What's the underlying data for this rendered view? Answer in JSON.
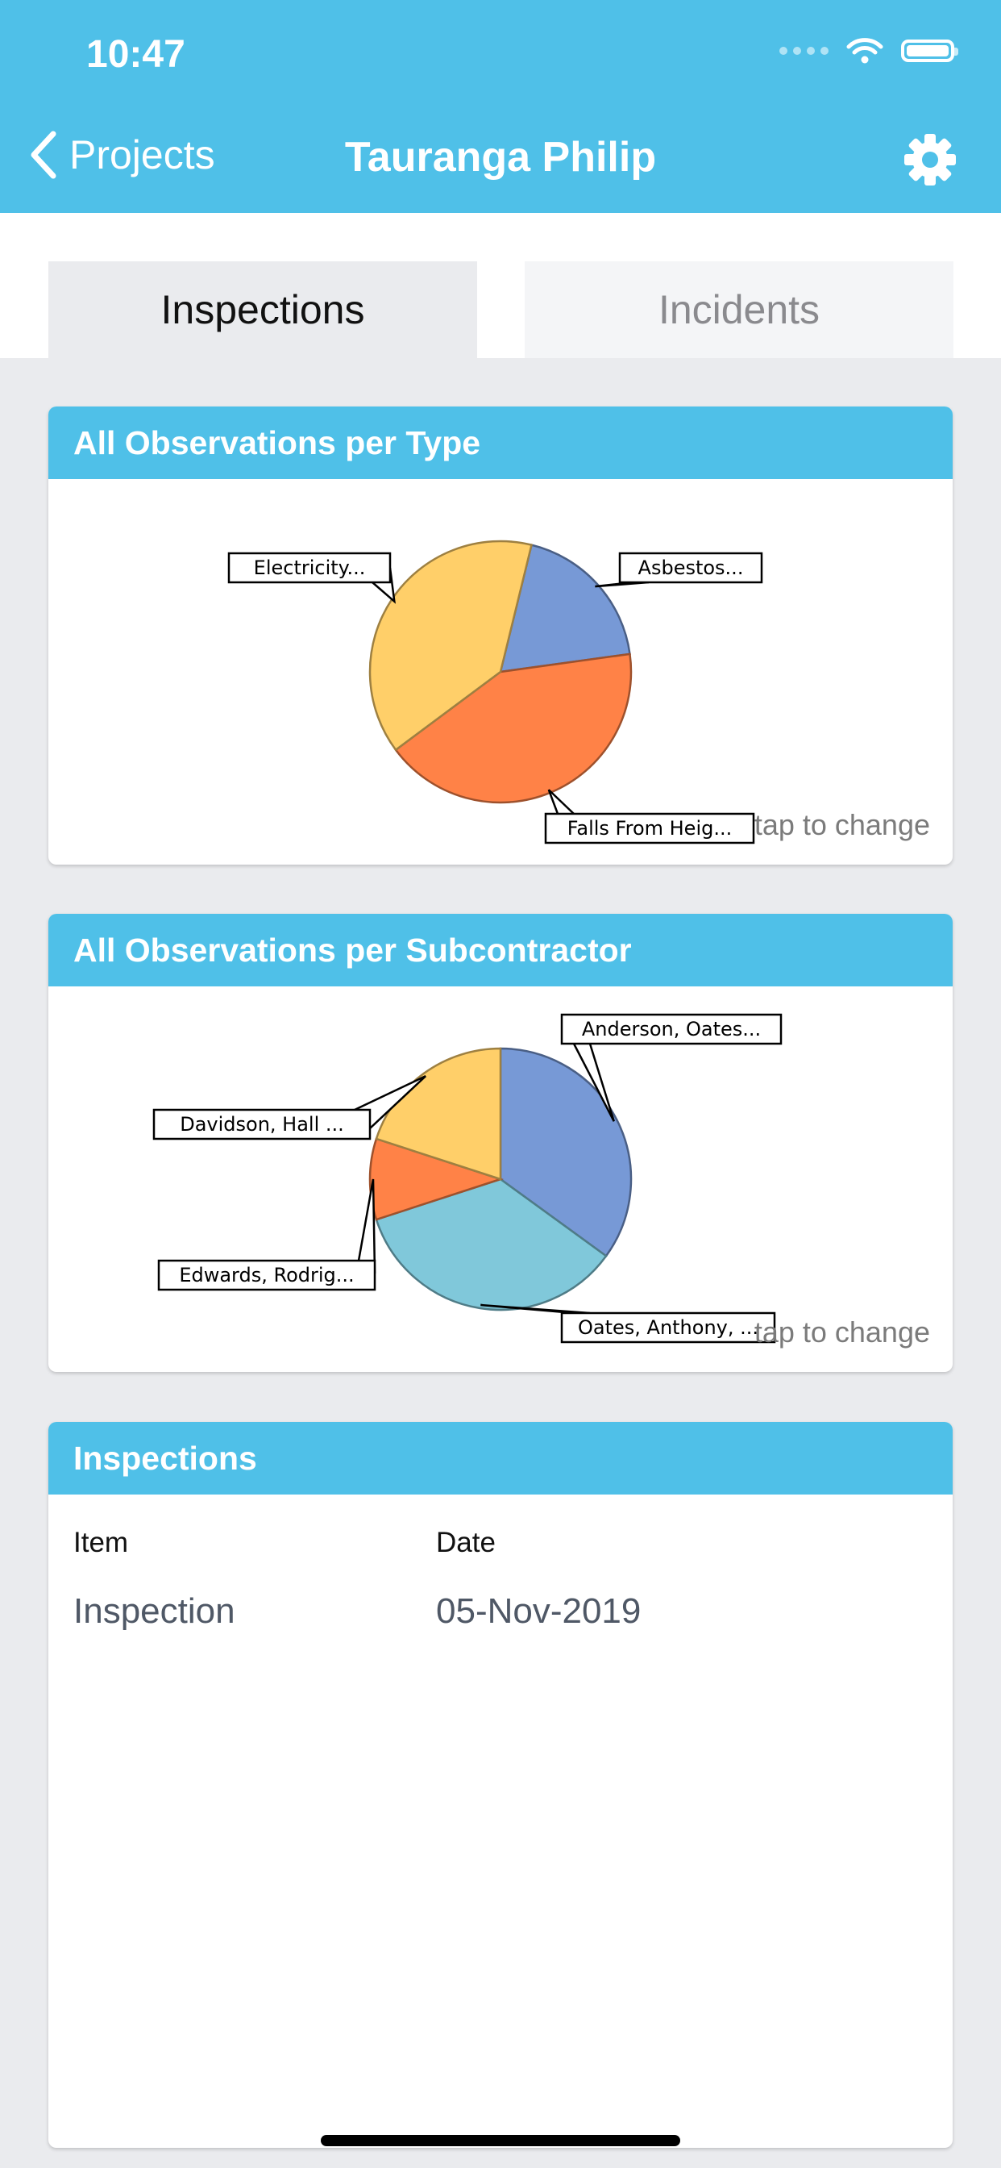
{
  "status_bar": {
    "time": "10:47"
  },
  "nav": {
    "back_label": "Projects",
    "title": "Tauranga Philip"
  },
  "tabs": [
    {
      "label": "Inspections",
      "active": true
    },
    {
      "label": "Incidents",
      "active": false
    }
  ],
  "cards": {
    "by_type": {
      "title": "All Observations per Type",
      "hint": "tap to change"
    },
    "by_subcontractor": {
      "title": "All Observations per Subcontractor",
      "hint": "tap to change"
    },
    "inspections": {
      "title": "Inspections",
      "columns": [
        "Item",
        "Date"
      ],
      "rows": [
        {
          "item": "Inspection",
          "date": "05-Nov-2019"
        }
      ]
    }
  },
  "chart_data": [
    {
      "type": "pie",
      "slices": [
        {
          "label": "Asbestos...",
          "value": 19,
          "color": "#7799D6"
        },
        {
          "label": "Falls From Heig...",
          "value": 42,
          "color": "#FF8247"
        },
        {
          "label": "Electricity...",
          "value": 39,
          "color": "#FFCF69"
        }
      ]
    },
    {
      "type": "pie",
      "slices": [
        {
          "label": "Anderson, Oates...",
          "value": 35,
          "color": "#7799D6"
        },
        {
          "label": "Oates, Anthony, ...",
          "value": 35,
          "color": "#80C8DA"
        },
        {
          "label": "Edwards, Rodrig...",
          "value": 10,
          "color": "#FF8247"
        },
        {
          "label": "Davidson, Hall ...",
          "value": 20,
          "color": "#FFCF69"
        }
      ]
    }
  ]
}
